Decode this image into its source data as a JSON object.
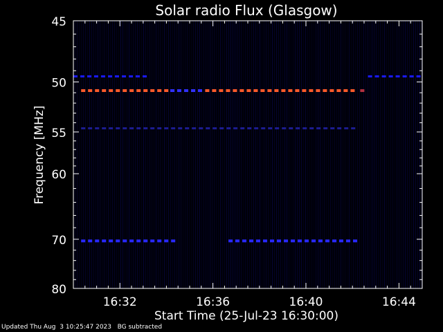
{
  "chart_data": {
    "type": "heatmap",
    "title": "Solar radio Flux (Glasgow)",
    "xlabel": "Start Time (25-Jul-23 16:30:00)",
    "ylabel": "Frequency [MHz]",
    "xlim": [
      "16:30:00",
      "16:45:00"
    ],
    "ylim": [
      45,
      80
    ],
    "y_scale": "reciprocal",
    "x_ticks": [
      "16:32",
      "16:36",
      "16:40",
      "16:44"
    ],
    "y_ticks": [
      45,
      50,
      55,
      60,
      70,
      80
    ],
    "background_color": "#000000",
    "frame_color": "#ffffff",
    "emission_bands": [
      {
        "frequency_mhz": 49.5,
        "start": "16:30:00",
        "end": "16:33:20",
        "color": "#1a1aff",
        "intensity": "low"
      },
      {
        "frequency_mhz": 49.5,
        "start": "16:42:40",
        "end": "16:45:00",
        "color": "#1a1aff",
        "intensity": "low"
      },
      {
        "frequency_mhz": 50.8,
        "start": "16:30:20",
        "end": "16:34:10",
        "color": "#ff5a2a",
        "intensity": "high"
      },
      {
        "frequency_mhz": 50.8,
        "start": "16:34:10",
        "end": "16:35:40",
        "color": "#3030ff",
        "intensity": "medium"
      },
      {
        "frequency_mhz": 50.8,
        "start": "16:35:40",
        "end": "16:42:10",
        "color": "#ff5a2a",
        "intensity": "high"
      },
      {
        "frequency_mhz": 50.8,
        "start": "16:42:20",
        "end": "16:42:40",
        "color": "#b03040",
        "intensity": "medium"
      },
      {
        "frequency_mhz": 54.6,
        "start": "16:30:20",
        "end": "16:42:10",
        "color": "#1c1c90",
        "intensity": "low"
      },
      {
        "frequency_mhz": 70.3,
        "start": "16:30:20",
        "end": "16:34:20",
        "color": "#2828ff",
        "intensity": "medium"
      },
      {
        "frequency_mhz": 70.3,
        "start": "16:36:40",
        "end": "16:42:10",
        "color": "#2828ff",
        "intensity": "medium"
      }
    ]
  },
  "footer": {
    "updated": "Updated Thu Aug  3 10:25:47 2023",
    "note": "BG subtracted"
  }
}
